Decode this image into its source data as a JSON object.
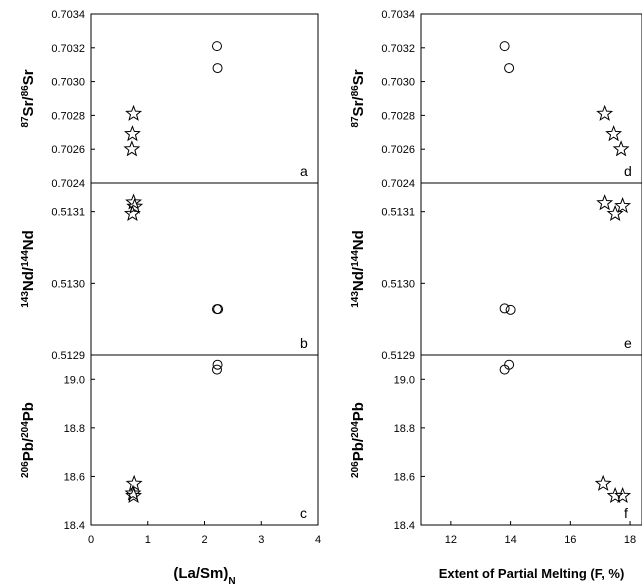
{
  "chart_data": [
    {
      "id": "a",
      "type": "scatter",
      "panel_letter": "a",
      "ylabel_parts": [
        [
          "87",
          "sup"
        ],
        [
          "Sr/",
          "n"
        ],
        [
          "86",
          "sup"
        ],
        [
          "Sr",
          "n"
        ]
      ],
      "xlim": [
        0,
        4
      ],
      "ylim": [
        0.7024,
        0.7034
      ],
      "xticks": [],
      "yticks": [
        "0.7024",
        "0.7026",
        "0.7028",
        "0.7030",
        "0.7032",
        "0.7034"
      ],
      "series": [
        {
          "marker": "circle",
          "points": [
            [
              2.22,
              0.70321
            ],
            [
              2.23,
              0.70308
            ]
          ]
        },
        {
          "marker": "star",
          "points": [
            [
              0.75,
              0.70281
            ],
            [
              0.73,
              0.70269
            ],
            [
              0.72,
              0.7026
            ]
          ]
        }
      ]
    },
    {
      "id": "b",
      "type": "scatter",
      "panel_letter": "b",
      "ylabel_parts": [
        [
          "143",
          "sup"
        ],
        [
          "Nd/",
          "n"
        ],
        [
          "144",
          "sup"
        ],
        [
          "Nd",
          "n"
        ]
      ],
      "xlim": [
        0,
        4
      ],
      "ylim": [
        0.5129,
        0.51314
      ],
      "xticks": [],
      "yticks": [
        "0.5129",
        "0.5130",
        "0.5131"
      ],
      "series": [
        {
          "marker": "circle",
          "points": [
            [
              2.22,
              0.512964
            ],
            [
              2.24,
              0.512964
            ]
          ]
        },
        {
          "marker": "star",
          "points": [
            [
              0.75,
              0.513113
            ],
            [
              0.77,
              0.513107
            ],
            [
              0.73,
              0.513097
            ]
          ]
        }
      ]
    },
    {
      "id": "c",
      "type": "scatter",
      "panel_letter": "c",
      "ylabel_parts": [
        [
          "206",
          "sup"
        ],
        [
          "Pb/",
          "n"
        ],
        [
          "204",
          "sup"
        ],
        [
          "Pb",
          "n"
        ]
      ],
      "xlim": [
        0,
        4
      ],
      "ylim": [
        18.4,
        19.1
      ],
      "xticks": [
        "0",
        "1",
        "2",
        "3",
        "4"
      ],
      "yticks": [
        "18.4",
        "18.6",
        "18.8",
        "19.0"
      ],
      "xlabel_parts": [
        [
          "(La/Sm)",
          "n"
        ],
        [
          "N",
          "sub"
        ]
      ],
      "series": [
        {
          "marker": "circle",
          "points": [
            [
              2.23,
              19.06
            ],
            [
              2.22,
              19.04
            ]
          ]
        },
        {
          "marker": "star",
          "points": [
            [
              0.76,
              18.57
            ],
            [
              0.74,
              18.53
            ],
            [
              0.75,
              18.52
            ]
          ]
        }
      ]
    },
    {
      "id": "d",
      "type": "scatter",
      "panel_letter": "d",
      "ylabel_parts": [
        [
          "87",
          "sup"
        ],
        [
          "Sr/",
          "n"
        ],
        [
          "86",
          "sup"
        ],
        [
          "Sr",
          "n"
        ]
      ],
      "xlim": [
        11,
        18.4
      ],
      "ylim": [
        0.7024,
        0.7034
      ],
      "xticks": [],
      "yticks": [
        "0.7024",
        "0.7026",
        "0.7028",
        "0.7030",
        "0.7032",
        "0.7034"
      ],
      "series": [
        {
          "marker": "circle",
          "points": [
            [
              13.8,
              0.70321
            ],
            [
              13.95,
              0.70308
            ]
          ]
        },
        {
          "marker": "star",
          "points": [
            [
              17.15,
              0.70281
            ],
            [
              17.45,
              0.70269
            ],
            [
              17.7,
              0.7026
            ]
          ]
        }
      ]
    },
    {
      "id": "e",
      "type": "scatter",
      "panel_letter": "e",
      "ylabel_parts": [
        [
          "143",
          "sup"
        ],
        [
          "Nd/",
          "n"
        ],
        [
          "144",
          "sup"
        ],
        [
          "Nd",
          "n"
        ]
      ],
      "xlim": [
        11,
        18.4
      ],
      "ylim": [
        0.5129,
        0.51314
      ],
      "xticks": [],
      "yticks": [
        "0.5129",
        "0.5130",
        "0.5131"
      ],
      "series": [
        {
          "marker": "circle",
          "points": [
            [
              13.8,
              0.512965
            ],
            [
              14.0,
              0.512963
            ]
          ]
        },
        {
          "marker": "star",
          "points": [
            [
              17.15,
              0.513112
            ],
            [
              17.75,
              0.513108
            ],
            [
              17.5,
              0.513097
            ]
          ]
        }
      ]
    },
    {
      "id": "f",
      "type": "scatter",
      "panel_letter": "f",
      "ylabel_parts": [
        [
          "206",
          "sup"
        ],
        [
          "Pb/",
          "n"
        ],
        [
          "204",
          "sup"
        ],
        [
          "Pb",
          "n"
        ]
      ],
      "xlim": [
        11,
        18.4
      ],
      "ylim": [
        18.4,
        19.1
      ],
      "xticks": [
        "12",
        "14",
        "16",
        "18"
      ],
      "yticks": [
        "18.4",
        "18.6",
        "18.8",
        "19.0"
      ],
      "xlabel_parts": [
        [
          "Extent of Partial Melting (F, %)",
          "n"
        ]
      ],
      "series": [
        {
          "marker": "circle",
          "points": [
            [
              13.95,
              19.06
            ],
            [
              13.8,
              19.04
            ]
          ]
        },
        {
          "marker": "star",
          "points": [
            [
              17.1,
              18.57
            ],
            [
              17.5,
              18.52
            ],
            [
              17.75,
              18.52
            ]
          ]
        }
      ]
    }
  ]
}
